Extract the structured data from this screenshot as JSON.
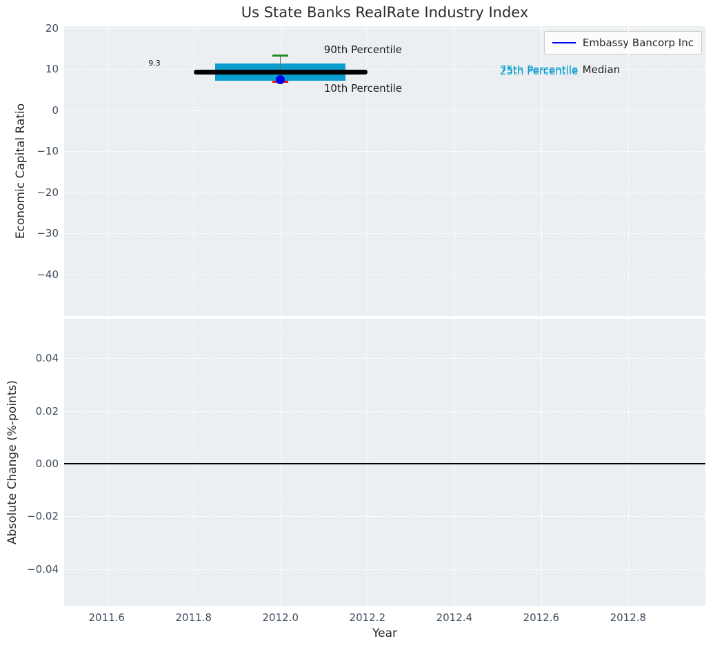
{
  "title": "Us State Banks RealRate Industry Index",
  "legend": {
    "series_label": "Embassy Bancorp Inc"
  },
  "colors": {
    "plot_bg": "#eceff1",
    "grid": "#ffffff",
    "tick_label": "#3f4d5e",
    "box_fill": "#0a9ecf",
    "median_line": "#000000",
    "whisker_line": "#666666",
    "cap_top": "#1e8c1e",
    "cap_bottom": "#ee1111",
    "company_dot": "#0000ee",
    "zero_line": "#000000"
  },
  "chart_data": {
    "type": "box-timeseries",
    "title": "Us State Banks RealRate Industry Index",
    "xlabel": "Year",
    "legend": [
      "Embassy Bancorp Inc"
    ],
    "legend_position": "upper right",
    "grid": "white-dashed",
    "x": {
      "lim": [
        2011.502,
        2012.978
      ],
      "ticks": [
        2011.6,
        2011.8,
        2012.0,
        2012.2,
        2012.4,
        2012.6,
        2012.8
      ],
      "tick_labels": [
        "2011.6",
        "2011.8",
        "2012.0",
        "2012.2",
        "2012.4",
        "2012.6",
        "2012.8"
      ]
    },
    "top_panel": {
      "ylabel": "Economic Capital Ratio",
      "ylim": [
        -50.1,
        20.5
      ],
      "yticks": [
        20,
        10,
        0,
        -10,
        -20,
        -30,
        -40
      ],
      "ytick_labels": [
        "20",
        "10",
        "0",
        "−10",
        "−20",
        "−30",
        "−40"
      ],
      "industry_box": {
        "year": 2012.0,
        "median": 9.3,
        "p90": 13.3,
        "p75": 11.5,
        "p25": 7.3,
        "p10": 6.9,
        "company_value": 7.4,
        "median_label": "9.3",
        "median_span": [
          2011.8,
          2012.2
        ],
        "box_span": [
          2011.85,
          2012.15
        ],
        "cap_half_width": 0.018
      },
      "annotations": [
        {
          "text": "9.3",
          "x": 2011.71,
          "y": 11.5,
          "color": "#111111",
          "size": 11,
          "align": "center"
        },
        {
          "text": "90th Percentile",
          "x": 2012.1,
          "y": 14.8,
          "color": "#1a1a1a",
          "size": 15,
          "align": "left"
        },
        {
          "text": "10th Percentile",
          "x": 2012.1,
          "y": 5.4,
          "color": "#1a1a1a",
          "size": 15,
          "align": "left"
        },
        {
          "text": "75th Percentile",
          "x": 2012.505,
          "y": 9.9,
          "color": "#0a9ecf",
          "size": 15,
          "align": "left"
        },
        {
          "text": "25th Percentile",
          "x": 2012.505,
          "y": 9.5,
          "color": "#0a9ecf",
          "size": 15,
          "align": "left"
        },
        {
          "text": "Median",
          "x": 2012.695,
          "y": 9.9,
          "color": "#1a1a1a",
          "size": 15,
          "align": "left"
        }
      ]
    },
    "bottom_panel": {
      "ylabel": "Absolute Change (%-points)",
      "ylim": [
        -0.054,
        0.055
      ],
      "yticks": [
        0.04,
        0.02,
        0.0,
        -0.02,
        -0.04
      ],
      "ytick_labels": [
        "0.04",
        "0.02",
        "0.00",
        "−0.02",
        "−0.04"
      ],
      "zero_line_y": 0.0
    }
  }
}
